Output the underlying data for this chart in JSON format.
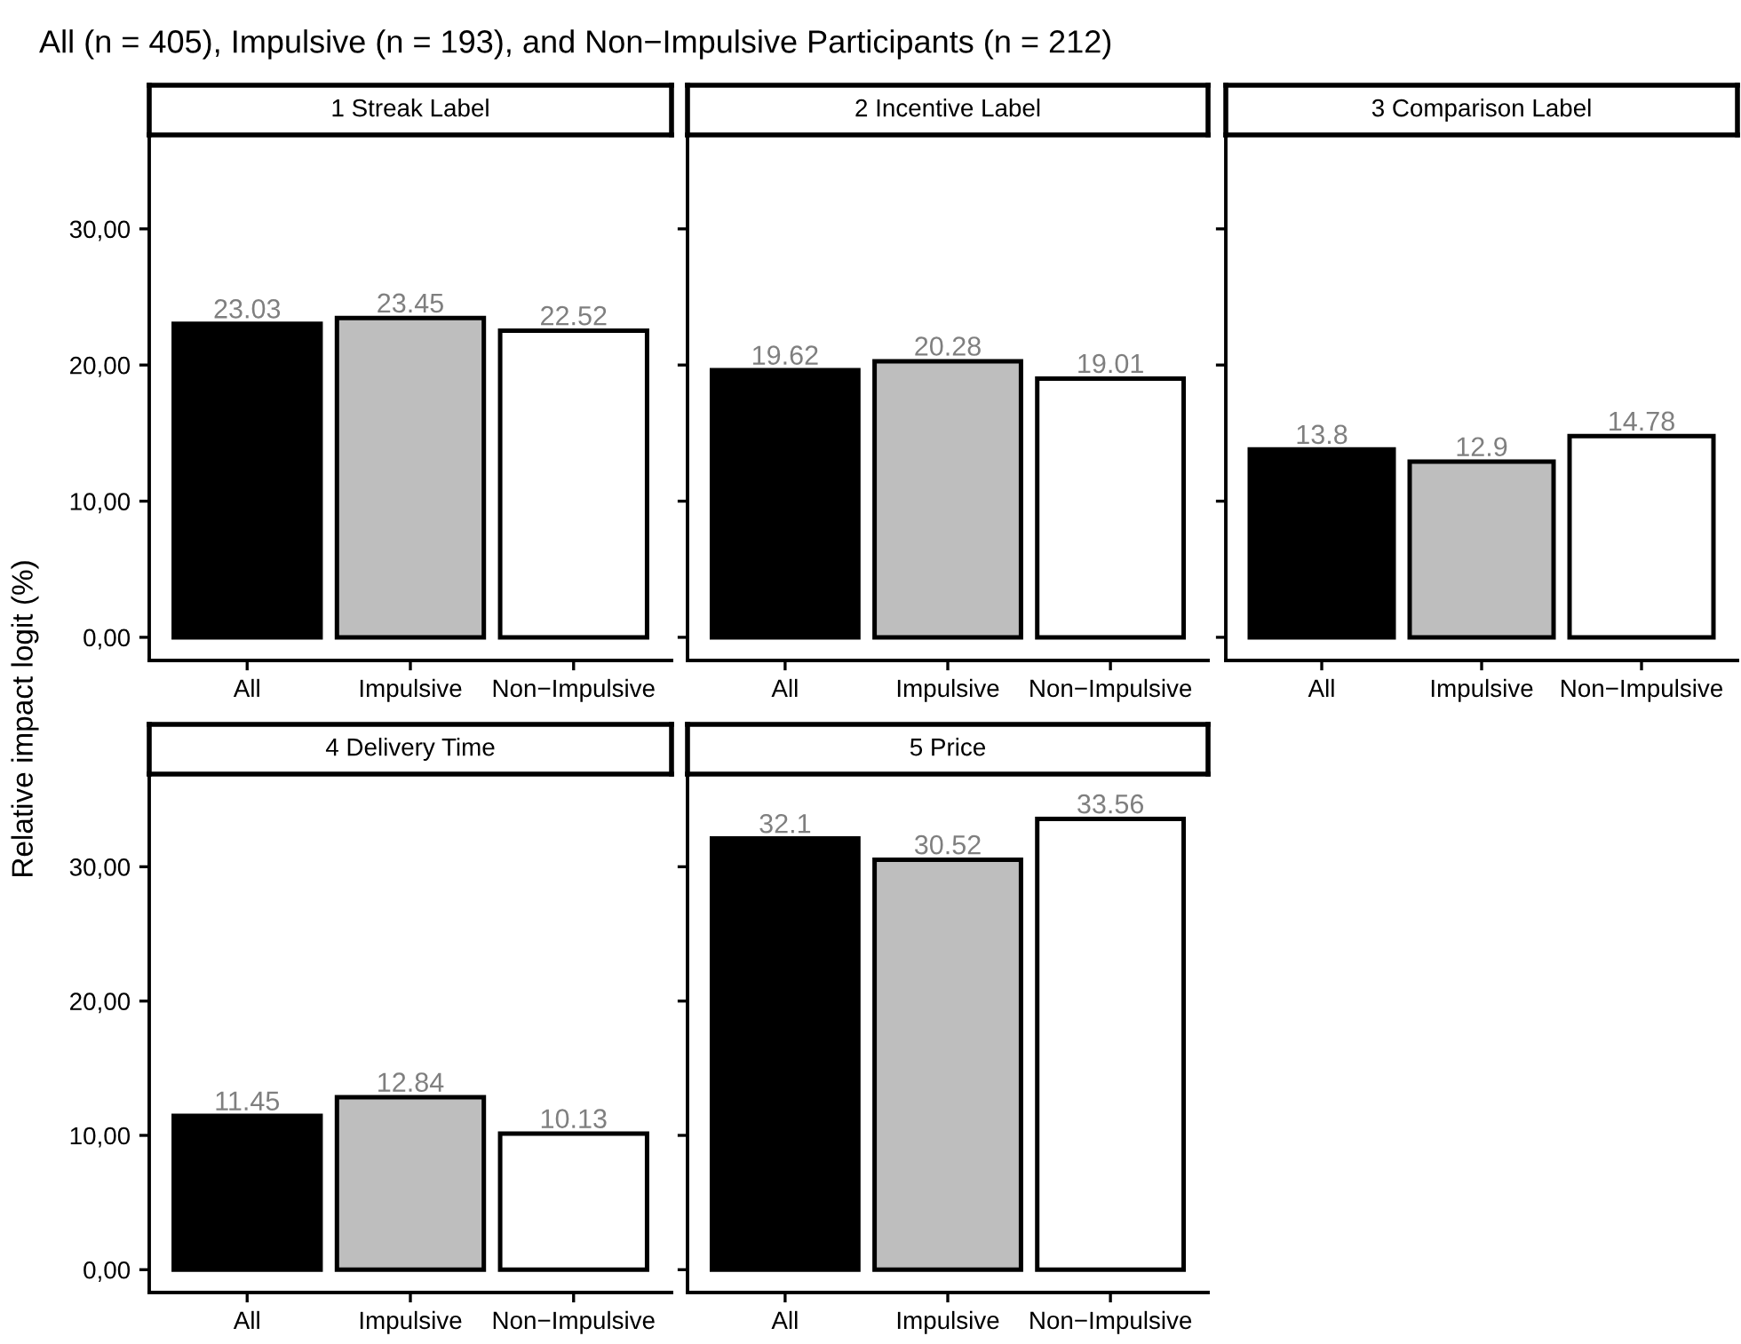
{
  "chart_data": [
    {
      "type": "bar",
      "title": "1 Streak Label",
      "ylabel": "Relative impact logit (%)",
      "annotations": [
        "All (n = 405), Impulsive (n = 193), and Non−Impulsive Participants (n = 212)"
      ],
      "categories": [
        "All",
        "Impulsive",
        "Non−Impulsive"
      ],
      "values": [
        23.03,
        23.45,
        22.52
      ],
      "colors": [
        "#000000",
        "#bebebe",
        "#ffffff"
      ],
      "data_labels": true,
      "ylim": [
        -1.7,
        36.9
      ],
      "yticks": [
        {
          "value": 0,
          "label": "0,00"
        },
        {
          "value": 10,
          "label": "10,00"
        },
        {
          "value": 20,
          "label": "20,00"
        },
        {
          "value": 30,
          "label": "30,00"
        }
      ],
      "grid": false
    },
    {
      "type": "bar",
      "title": "2 Incentive Label",
      "categories": [
        "All",
        "Impulsive",
        "Non−Impulsive"
      ],
      "values": [
        19.62,
        20.28,
        19.01
      ],
      "colors": [
        "#000000",
        "#bebebe",
        "#ffffff"
      ],
      "data_labels": true,
      "ylim": [
        -1.7,
        36.9
      ],
      "yticks": [
        {
          "value": 0,
          "label": null
        },
        {
          "value": 10,
          "label": null
        },
        {
          "value": 20,
          "label": null
        },
        {
          "value": 30,
          "label": null
        }
      ],
      "tick_labels": "x",
      "grid": false
    },
    {
      "type": "bar",
      "title": "3 Comparison Label",
      "categories": [
        "All",
        "Impulsive",
        "Non−Impulsive"
      ],
      "values": [
        13.8,
        12.9,
        14.78
      ],
      "colors": [
        "#000000",
        "#bebebe",
        "#ffffff"
      ],
      "data_labels": true,
      "ylim": [
        -1.7,
        36.9
      ],
      "yticks": [
        {
          "value": 0,
          "label": null
        },
        {
          "value": 10,
          "label": null
        },
        {
          "value": 20,
          "label": null
        },
        {
          "value": 30,
          "label": null
        }
      ],
      "tick_labels": "x",
      "grid": false
    },
    {
      "type": "bar",
      "title": "4 Delivery Time",
      "categories": [
        "All",
        "Impulsive",
        "Non−Impulsive"
      ],
      "values": [
        11.45,
        12.84,
        10.13
      ],
      "colors": [
        "#000000",
        "#bebebe",
        "#ffffff"
      ],
      "data_labels": true,
      "ylim": [
        -1.7,
        36.9
      ],
      "yticks": [
        {
          "value": 0,
          "label": "0,00"
        },
        {
          "value": 10,
          "label": "10,00"
        },
        {
          "value": 20,
          "label": "20,00"
        },
        {
          "value": 30,
          "label": "30,00"
        }
      ],
      "grid": false
    },
    {
      "type": "bar",
      "title": "5 Price",
      "categories": [
        "All",
        "Impulsive",
        "Non−Impulsive"
      ],
      "values": [
        32.1,
        30.52,
        33.56
      ],
      "colors": [
        "#000000",
        "#bebebe",
        "#ffffff"
      ],
      "data_labels": true,
      "ylim": [
        -1.7,
        36.9
      ],
      "yticks": [
        {
          "value": 0,
          "label": null
        },
        {
          "value": 10,
          "label": null
        },
        {
          "value": 20,
          "label": null
        },
        {
          "value": 30,
          "label": null
        }
      ],
      "tick_labels": "x",
      "grid": false
    }
  ]
}
